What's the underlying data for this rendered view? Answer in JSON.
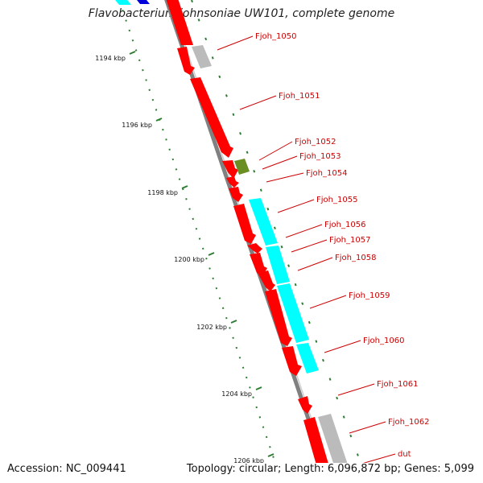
{
  "title": "Flavobacterium johnsoniae UW101, complete genome",
  "footer": {
    "accession": "Accession: NC_009441",
    "summary": "Topology: circular; Length: 6,096,872 bp; Genes: 5,099"
  },
  "colors": {
    "gene_forward": "#ff0000",
    "gene_other": "#00ffff",
    "pseudo": "#bbbbbb",
    "rna": "#6b8e23",
    "blue_feature": "#0000dd",
    "backbone": "#808080",
    "tick": "#2e7d32",
    "label": "#cc0000"
  },
  "scale_labels": [
    "1194 kbp",
    "1196 kbp",
    "1198 kbp",
    "1200 kbp",
    "1202 kbp",
    "1204 kbp",
    "1206 kbp"
  ],
  "gene_labels": [
    "Fjoh_1050",
    "Fjoh_1051",
    "Fjoh_1052",
    "Fjoh_1053",
    "Fjoh_1054",
    "Fjoh_1055",
    "Fjoh_1056",
    "Fjoh_1057",
    "Fjoh_1058",
    "Fjoh_1059",
    "Fjoh_1060",
    "Fjoh_1061",
    "Fjoh_1062",
    "dut"
  ]
}
